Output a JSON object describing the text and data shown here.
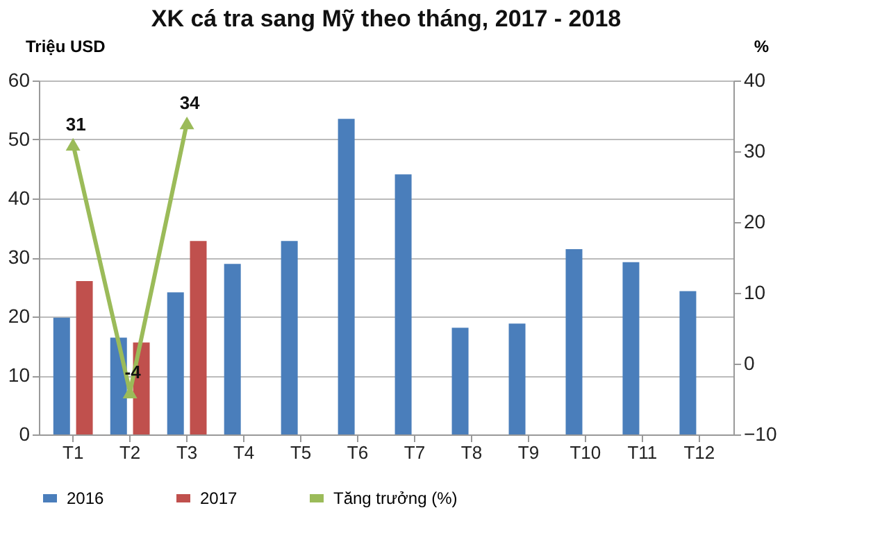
{
  "chart_data": {
    "type": "bar",
    "title": "XK cá tra sang Mỹ theo tháng, 2017 - 2018",
    "ylabel": "Triệu USD",
    "y2label": "%",
    "categories": [
      "T1",
      "T2",
      "T3",
      "T4",
      "T5",
      "T6",
      "T7",
      "T8",
      "T9",
      "T10",
      "T11",
      "T12"
    ],
    "series": [
      {
        "name": "2016",
        "color": "#4a7ebb",
        "values": [
          19.8,
          16.4,
          24.1,
          28.9,
          32.8,
          53.5,
          44.1,
          18.1,
          18.8,
          31.4,
          29.2,
          24.3
        ]
      },
      {
        "name": "2017",
        "color": "#c0504d",
        "values": [
          26,
          15.6,
          32.8,
          null,
          null,
          null,
          null,
          null,
          null,
          null,
          null,
          null
        ]
      },
      {
        "name": "Tăng trưởng (%)",
        "type": "line",
        "axis": "y2",
        "color": "#9bbb59",
        "marker": "triangle",
        "values": [
          31,
          -4,
          34,
          null,
          null,
          null,
          null,
          null,
          null,
          null,
          null,
          null
        ],
        "value_labels": [
          "31",
          "-4",
          "34",
          null,
          null,
          null,
          null,
          null,
          null,
          null,
          null,
          null
        ]
      }
    ],
    "ylim": [
      0,
      60
    ],
    "yticks": [
      0,
      10,
      20,
      30,
      40,
      50,
      60
    ],
    "y2lim": [
      -10,
      40
    ],
    "y2ticks": [
      -10,
      0,
      10,
      20,
      30,
      40
    ],
    "grid": "y",
    "legend": "bottom"
  }
}
